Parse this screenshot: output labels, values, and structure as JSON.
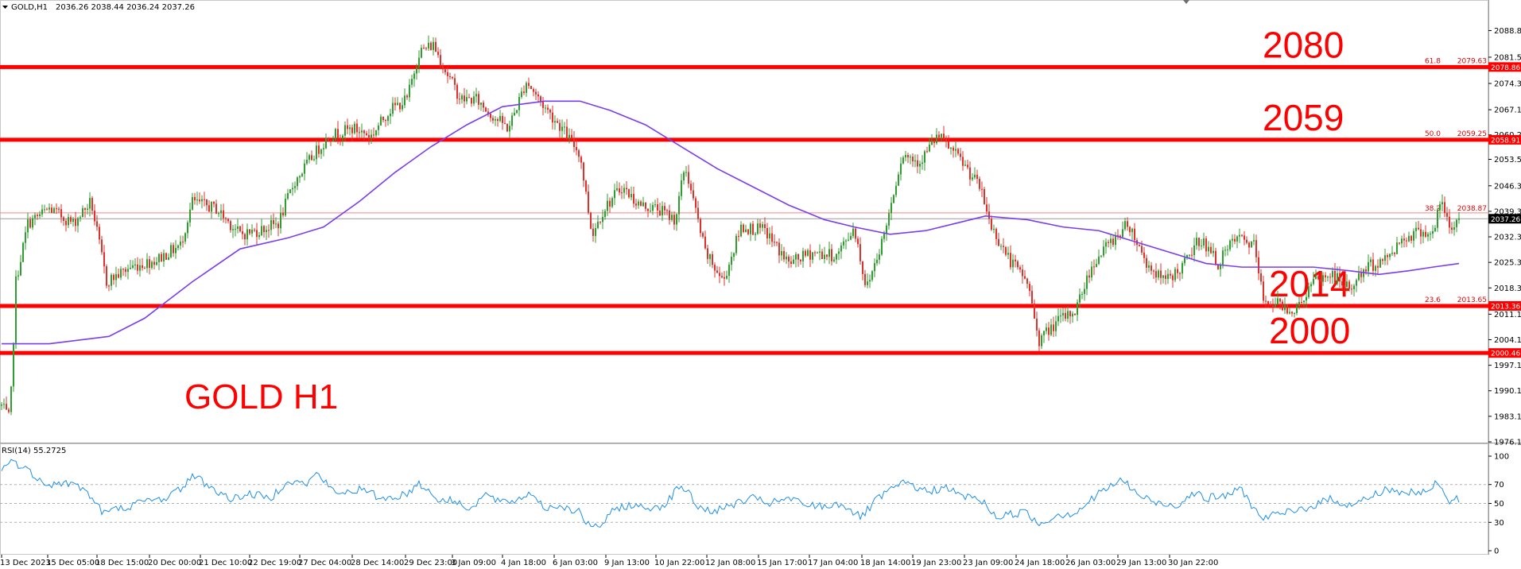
{
  "header": {
    "symbol": "GOLD,H1",
    "ohlc": "2036.26 2038.44 2036.24 2037.26"
  },
  "rsi_header": "RSI(14) 55.2725",
  "colors": {
    "bull": "#2e9e2e",
    "bear": "#e0302a",
    "ma": "#7a3cf0",
    "level": "#ff0000",
    "rsi": "#1e8fe6"
  },
  "chart_data": [
    {
      "type": "candlestick",
      "title": "GOLD H1",
      "ylim": [
        1976.1,
        2092.0
      ],
      "y_ticks": [
        2088.85,
        2081.55,
        2074.35,
        2067.15,
        2060.25,
        2053.55,
        2046.3,
        2039.3,
        2032.3,
        2025.3,
        2018.3,
        2011.1,
        2004.1,
        1997.1,
        1990.1,
        1983.1,
        1976.1
      ],
      "y_tick_labels": [
        "2088.85",
        "2081.55",
        "2074.35",
        "2067.15",
        "2060.25",
        "2053.55",
        "2046.30",
        "2039.30",
        "2032.30",
        "2025.30",
        "2018.30",
        "2011.10",
        "2004.10",
        "1997.10",
        "1990.10",
        "1983.10",
        "1976.10"
      ],
      "x_tick_labels": [
        "13 Dec 2023",
        "15 Dec 05:00",
        "18 Dec 15:00",
        "20 Dec 00:00",
        "21 Dec 10:00",
        "22 Dec 19:00",
        "27 Dec 04:00",
        "28 Dec 14:00",
        "29 Dec 23:00",
        "3 Jan 09:00",
        "4 Jan 18:00",
        "6 Jan 03:00",
        "9 Jan 13:00",
        "10 Jan 22:00",
        "12 Jan 08:00",
        "15 Jan 17:00",
        "17 Jan 04:00",
        "18 Jan 14:00",
        "19 Jan 23:00",
        "23 Jan 09:00",
        "24 Jan 18:00",
        "26 Jan 03:00",
        "29 Jan 13:00",
        "30 Jan 22:00"
      ],
      "price_path": [
        [
          0,
          1986
        ],
        [
          7,
          1982
        ],
        [
          12,
          2020
        ],
        [
          22,
          2036
        ],
        [
          40,
          2040
        ],
        [
          60,
          2036
        ],
        [
          75,
          2042
        ],
        [
          88,
          2020
        ],
        [
          108,
          2024
        ],
        [
          130,
          2026
        ],
        [
          150,
          2030
        ],
        [
          160,
          2042
        ],
        [
          180,
          2040
        ],
        [
          200,
          2033
        ],
        [
          215,
          2034
        ],
        [
          232,
          2036
        ],
        [
          245,
          2047
        ],
        [
          262,
          2055
        ],
        [
          275,
          2060
        ],
        [
          295,
          2062
        ],
        [
          310,
          2060
        ],
        [
          325,
          2067
        ],
        [
          340,
          2070
        ],
        [
          350,
          2083
        ],
        [
          362,
          2085
        ],
        [
          372,
          2078
        ],
        [
          385,
          2070
        ],
        [
          398,
          2070
        ],
        [
          410,
          2066
        ],
        [
          425,
          2062
        ],
        [
          440,
          2075
        ],
        [
          455,
          2068
        ],
        [
          470,
          2062
        ],
        [
          485,
          2055
        ],
        [
          495,
          2033
        ],
        [
          505,
          2040
        ],
        [
          520,
          2046
        ],
        [
          535,
          2041
        ],
        [
          550,
          2040
        ],
        [
          565,
          2037
        ],
        [
          573,
          2052
        ],
        [
          590,
          2028
        ],
        [
          605,
          2020
        ],
        [
          620,
          2035
        ],
        [
          640,
          2034
        ],
        [
          660,
          2025
        ],
        [
          680,
          2028
        ],
        [
          700,
          2027
        ],
        [
          715,
          2035
        ],
        [
          725,
          2018
        ],
        [
          740,
          2033
        ],
        [
          755,
          2055
        ],
        [
          770,
          2053
        ],
        [
          785,
          2060
        ],
        [
          805,
          2053
        ],
        [
          820,
          2046
        ],
        [
          830,
          2035
        ],
        [
          845,
          2026
        ],
        [
          860,
          2020
        ],
        [
          870,
          2004
        ],
        [
          885,
          2009
        ],
        [
          900,
          2012
        ],
        [
          915,
          2025
        ],
        [
          930,
          2031
        ],
        [
          945,
          2036
        ],
        [
          960,
          2025
        ],
        [
          975,
          2020
        ],
        [
          990,
          2024
        ],
        [
          1005,
          2032
        ],
        [
          1020,
          2025
        ],
        [
          1035,
          2032
        ],
        [
          1050,
          2030
        ],
        [
          1058,
          2015
        ],
        [
          1070,
          2014
        ],
        [
          1085,
          2012
        ],
        [
          1100,
          2020
        ],
        [
          1115,
          2022
        ],
        [
          1130,
          2018
        ],
        [
          1145,
          2024
        ],
        [
          1160,
          2026
        ],
        [
          1175,
          2032
        ],
        [
          1190,
          2034
        ],
        [
          1200,
          2033
        ],
        [
          1207,
          2042
        ],
        [
          1215,
          2034
        ],
        [
          1222,
          2037.3
        ]
      ],
      "moving_average": [
        [
          0,
          2003
        ],
        [
          40,
          2003
        ],
        [
          90,
          2005
        ],
        [
          120,
          2010
        ],
        [
          160,
          2020
        ],
        [
          200,
          2029
        ],
        [
          240,
          2032
        ],
        [
          270,
          2035
        ],
        [
          300,
          2042
        ],
        [
          330,
          2050
        ],
        [
          360,
          2057
        ],
        [
          390,
          2063
        ],
        [
          420,
          2068
        ],
        [
          455,
          2069.5
        ],
        [
          485,
          2069.5
        ],
        [
          510,
          2067
        ],
        [
          540,
          2063
        ],
        [
          570,
          2057
        ],
        [
          600,
          2051
        ],
        [
          630,
          2046
        ],
        [
          660,
          2041
        ],
        [
          690,
          2037
        ],
        [
          715,
          2035
        ],
        [
          745,
          2033
        ],
        [
          775,
          2034
        ],
        [
          800,
          2036
        ],
        [
          825,
          2038
        ],
        [
          860,
          2037
        ],
        [
          890,
          2035
        ],
        [
          920,
          2034
        ],
        [
          950,
          2031
        ],
        [
          980,
          2028
        ],
        [
          1010,
          2025
        ],
        [
          1040,
          2024
        ],
        [
          1070,
          2024
        ],
        [
          1100,
          2024
        ],
        [
          1130,
          2023
        ],
        [
          1155,
          2022
        ],
        [
          1180,
          2023
        ],
        [
          1200,
          2024
        ],
        [
          1222,
          2025
        ]
      ],
      "levels": [
        {
          "label": "2080",
          "value": 2078.86,
          "box": "2078.86",
          "fib_ratio": "61.8",
          "fib_value": "2079.63"
        },
        {
          "label": "2059",
          "value": 2058.91,
          "box": "2058.91",
          "fib_ratio": "50.0",
          "fib_value": "2059.25"
        },
        {
          "label": "2014",
          "value": 2013.36,
          "box": "2013.36",
          "fib_ratio": "23.6",
          "fib_value": "2013.65"
        },
        {
          "label": "2000",
          "value": 2000.46,
          "box": "2000.46"
        }
      ],
      "fib_thin": {
        "ratio": "38.2",
        "value": 2038.87,
        "value_label": "2038.87"
      },
      "current_price": {
        "value": 2037.26,
        "label": "2037.26"
      }
    },
    {
      "type": "line",
      "title": "RSI(14) 55.2725",
      "ylim": [
        0,
        100
      ],
      "y_ticks": [
        100,
        70,
        50,
        30,
        0
      ],
      "y_tick_labels": [
        "100",
        "70",
        "50",
        "30",
        "0"
      ],
      "path": [
        [
          0,
          88
        ],
        [
          10,
          95
        ],
        [
          25,
          82
        ],
        [
          40,
          70
        ],
        [
          55,
          72
        ],
        [
          70,
          65
        ],
        [
          85,
          40
        ],
        [
          100,
          45
        ],
        [
          120,
          52
        ],
        [
          135,
          55
        ],
        [
          150,
          65
        ],
        [
          160,
          80
        ],
        [
          175,
          68
        ],
        [
          190,
          55
        ],
        [
          210,
          60
        ],
        [
          225,
          55
        ],
        [
          240,
          75
        ],
        [
          255,
          70
        ],
        [
          265,
          82
        ],
        [
          280,
          60
        ],
        [
          300,
          65
        ],
        [
          320,
          55
        ],
        [
          340,
          60
        ],
        [
          350,
          72
        ],
        [
          365,
          55
        ],
        [
          380,
          52
        ],
        [
          395,
          45
        ],
        [
          405,
          60
        ],
        [
          420,
          50
        ],
        [
          435,
          55
        ],
        [
          445,
          62
        ],
        [
          455,
          45
        ],
        [
          470,
          48
        ],
        [
          485,
          40
        ],
        [
          495,
          22
        ],
        [
          505,
          30
        ],
        [
          515,
          45
        ],
        [
          525,
          48
        ],
        [
          540,
          45
        ],
        [
          555,
          48
        ],
        [
          570,
          70
        ],
        [
          585,
          45
        ],
        [
          600,
          42
        ],
        [
          615,
          50
        ],
        [
          630,
          55
        ],
        [
          645,
          50
        ],
        [
          660,
          55
        ],
        [
          675,
          48
        ],
        [
          690,
          47
        ],
        [
          705,
          50
        ],
        [
          720,
          35
        ],
        [
          735,
          55
        ],
        [
          750,
          68
        ],
        [
          760,
          72
        ],
        [
          775,
          62
        ],
        [
          790,
          67
        ],
        [
          805,
          58
        ],
        [
          820,
          55
        ],
        [
          835,
          35
        ],
        [
          850,
          40
        ],
        [
          860,
          40
        ],
        [
          870,
          28
        ],
        [
          885,
          38
        ],
        [
          900,
          40
        ],
        [
          915,
          55
        ],
        [
          925,
          65
        ],
        [
          940,
          75
        ],
        [
          955,
          57
        ],
        [
          970,
          50
        ],
        [
          985,
          48
        ],
        [
          1000,
          62
        ],
        [
          1010,
          55
        ],
        [
          1025,
          58
        ],
        [
          1040,
          65
        ],
        [
          1055,
          35
        ],
        [
          1070,
          38
        ],
        [
          1085,
          42
        ],
        [
          1100,
          48
        ],
        [
          1115,
          55
        ],
        [
          1130,
          48
        ],
        [
          1145,
          55
        ],
        [
          1160,
          65
        ],
        [
          1175,
          62
        ],
        [
          1190,
          60
        ],
        [
          1205,
          72
        ],
        [
          1212,
          52
        ],
        [
          1222,
          55
        ]
      ]
    }
  ]
}
